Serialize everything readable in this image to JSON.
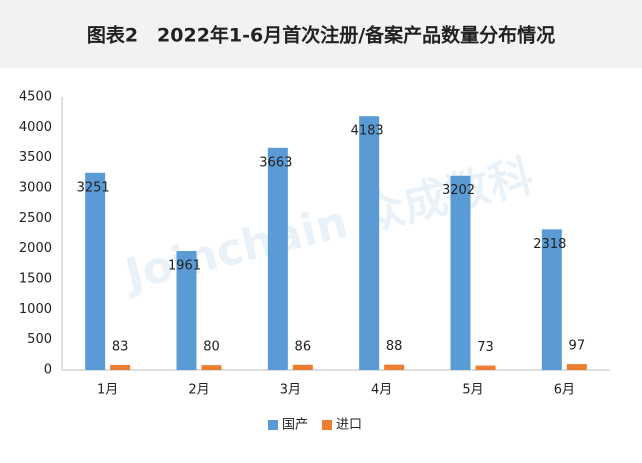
{
  "chart_data": {
    "type": "bar",
    "title": "图表2　2022年1-6月首次注册/备案产品数量分布情况",
    "watermark": "Joinchain 众成数科",
    "categories": [
      "1月",
      "2月",
      "3月",
      "4月",
      "5月",
      "6月"
    ],
    "series": [
      {
        "name": "国产",
        "color": "#5b9bd5",
        "values": [
          3251,
          1961,
          3663,
          4183,
          3202,
          2318
        ]
      },
      {
        "name": "进口",
        "color": "#ed7d31",
        "values": [
          83,
          80,
          86,
          88,
          73,
          97
        ]
      }
    ],
    "ylim": [
      0,
      4500
    ],
    "yticks": [
      0,
      500,
      1000,
      1500,
      2000,
      2500,
      3000,
      3500,
      4000,
      4500
    ],
    "legend": "bottom",
    "grid": false
  }
}
